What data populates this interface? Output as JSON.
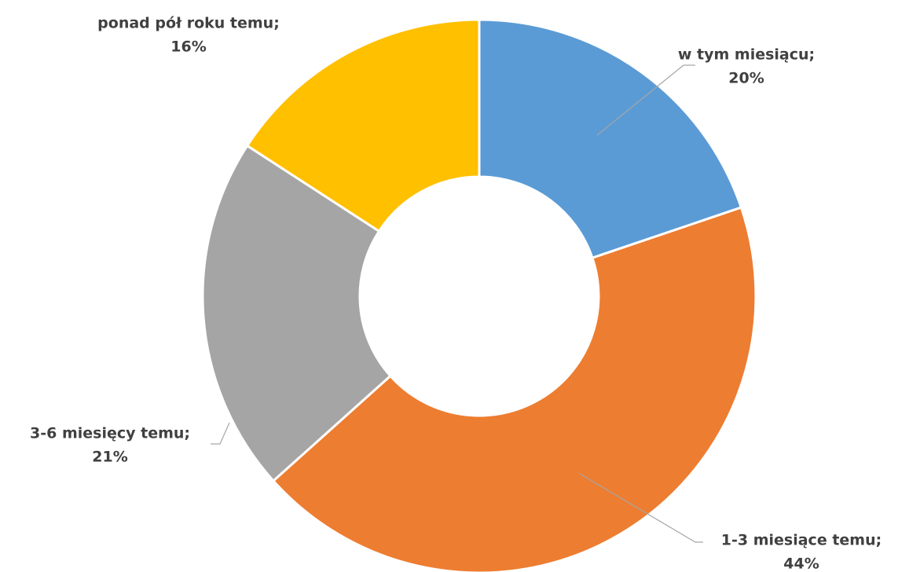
{
  "chart_data": {
    "type": "donut",
    "categories": [
      "w tym miesiącu;",
      "1-3 miesiące temu;",
      "3-6 miesięcy temu;",
      "ponad pół roku temu;"
    ],
    "values": [
      20,
      44,
      21,
      16
    ],
    "value_labels": [
      "20%",
      "44%",
      "21%",
      "16%"
    ],
    "colors": [
      "#5b9bd5",
      "#ed7d31",
      "#a5a5a5",
      "#ffc000"
    ]
  }
}
